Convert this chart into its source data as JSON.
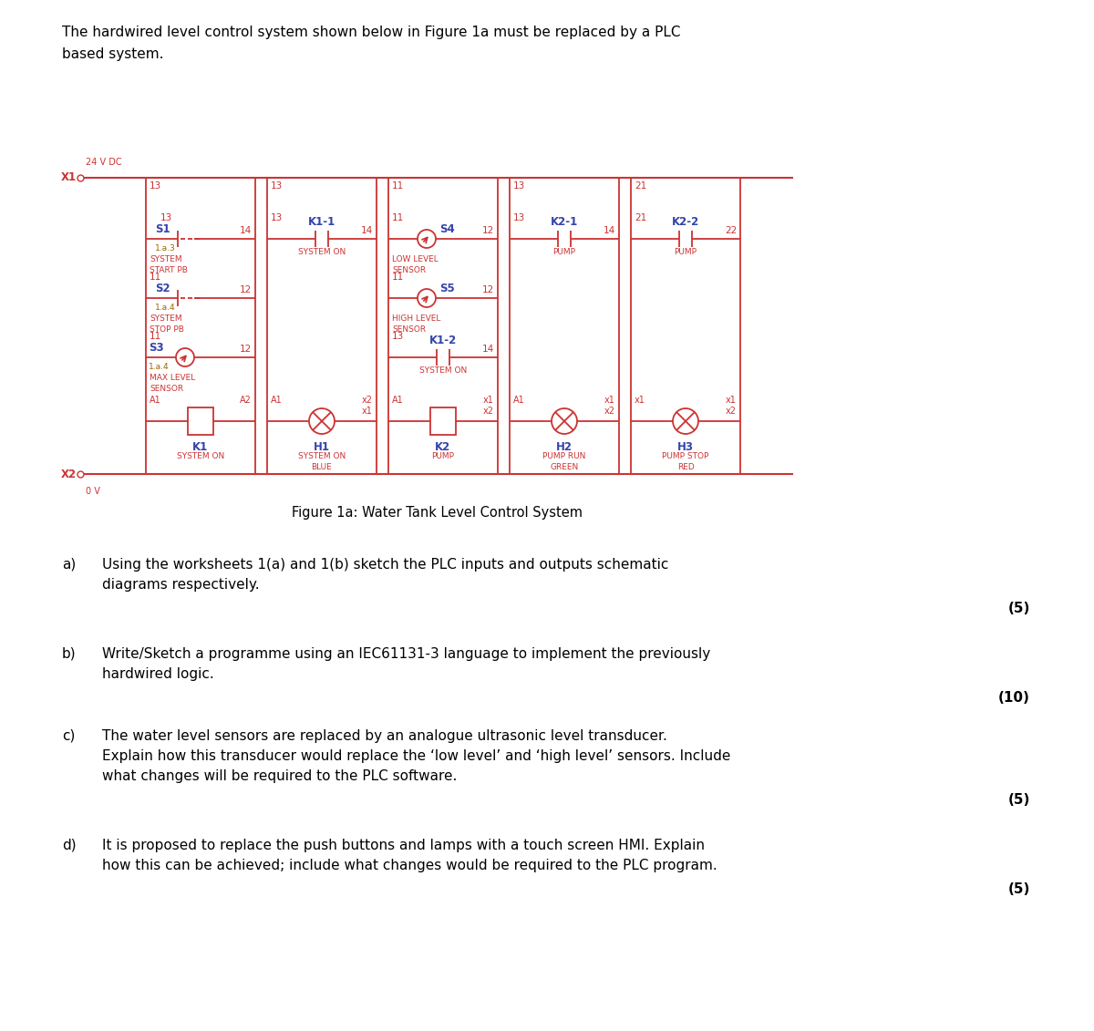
{
  "intro_text_line1": "The hardwired level control system shown below in Figure 1a must be replaced by a PLC",
  "intro_text_line2": "based system.",
  "figure_caption": "Figure 1a: Water Tank Level Control System",
  "bg_color": "#ffffff",
  "diagram_color": "#cc3333",
  "text_color_blue": "#3344aa",
  "text_color_olive": "#996600",
  "x1_label": "X1",
  "x1_sub": "24 V DC",
  "x2_label": "X2",
  "x2_sub": "0 V",
  "questions": [
    {
      "label": "a)",
      "text_line1": "Using the worksheets 1(a) and 1(b) sketch the PLC inputs and outputs schematic",
      "text_line2": "diagrams respectively.",
      "text_line3": "",
      "marks": "(5)"
    },
    {
      "label": "b)",
      "text_line1": "Write/Sketch a programme using an IEC61131-3 language to implement the previously",
      "text_line2": "hardwired logic.",
      "text_line3": "",
      "marks": "(10)"
    },
    {
      "label": "c)",
      "text_line1": "The water level sensors are replaced by an analogue ultrasonic level transducer.",
      "text_line2": "Explain how this transducer would replace the ‘low level’ and ‘high level’ sensors. Include",
      "text_line3": "what changes will be required to the PLC software.",
      "marks": "(5)"
    },
    {
      "label": "d)",
      "text_line1": "It is proposed to replace the push buttons and lamps with a touch screen HMI. Explain",
      "text_line2": "how this can be achieved; include what changes would be required to the PLC program.",
      "text_line3": "",
      "marks": "(5)"
    }
  ]
}
